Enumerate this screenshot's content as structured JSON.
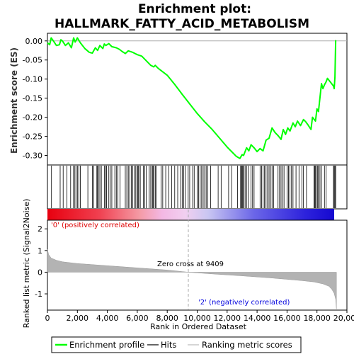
{
  "chart_data": {
    "type": "line",
    "title_line1": "Enrichment plot:",
    "title_line2": "HALLMARK_FATTY_ACID_METABOLISM",
    "es_ylabel": "Enrichment score (ES)",
    "metric_ylabel": "Ranked list metric (Signal2Noise)",
    "xlabel": "Rank in Ordered Dataset",
    "xlim": [
      0,
      20000
    ],
    "es_ylim": [
      -0.325,
      0.02
    ],
    "metric_ylim": [
      -1.75,
      2.4
    ],
    "x_ticks": [
      0,
      2000,
      4000,
      6000,
      8000,
      10000,
      12000,
      14000,
      16000,
      18000,
      20000
    ],
    "x_tick_labels": [
      "0",
      "2,000",
      "4,000",
      "6,000",
      "8,000",
      "10,000",
      "12,000",
      "14,000",
      "16,000",
      "18,000",
      "20,000"
    ],
    "es_ticks": [
      0.0,
      -0.05,
      -0.1,
      -0.15,
      -0.2,
      -0.25,
      -0.3
    ],
    "es_tick_labels": [
      "0.00",
      "-0.05",
      "-0.10",
      "-0.15",
      "-0.20",
      "-0.25",
      "-0.30"
    ],
    "metric_ticks": [
      2,
      1,
      0,
      -1
    ],
    "metric_tick_labels": [
      "2",
      "1",
      "0",
      "-1"
    ],
    "n_genes": 19300,
    "zero_cross_rank": 9409,
    "zero_cross_label": "Zero cross at 9409",
    "pos_label": "'0' (positively correlated)",
    "neg_label": "'2' (negatively correlated)",
    "es_profile": {
      "x": [
        0,
        150,
        250,
        400,
        600,
        800,
        900,
        1000,
        1200,
        1400,
        1600,
        1750,
        1850,
        2000,
        2200,
        2500,
        2800,
        3000,
        3200,
        3350,
        3500,
        3700,
        3800,
        3900,
        4100,
        4300,
        4600,
        4800,
        5000,
        5200,
        5400,
        5700,
        6000,
        6300,
        6600,
        6900,
        7100,
        7200,
        7400,
        8000,
        8500,
        9000,
        9500,
        10000,
        10500,
        11000,
        11500,
        12000,
        12300,
        12600,
        12850,
        13000,
        13100,
        13300,
        13450,
        13600,
        13800,
        14000,
        14200,
        14400,
        14600,
        14800,
        15000,
        15200,
        15400,
        15600,
        15750,
        15900,
        16050,
        16200,
        16400,
        16550,
        16700,
        16900,
        17100,
        17250,
        17400,
        17600,
        17700,
        17900,
        18000,
        18100,
        18300,
        18400,
        18500,
        18600,
        18700,
        18900,
        19100,
        19150,
        19200,
        19250
      ],
      "y": [
        -0.005,
        -0.01,
        0.008,
        0.0,
        -0.012,
        -0.01,
        0.003,
        0.0,
        -0.012,
        -0.005,
        -0.018,
        0.008,
        -0.003,
        0.008,
        -0.005,
        -0.02,
        -0.03,
        -0.032,
        -0.018,
        -0.025,
        -0.012,
        -0.02,
        -0.008,
        -0.012,
        -0.007,
        -0.015,
        -0.018,
        -0.022,
        -0.028,
        -0.033,
        -0.026,
        -0.03,
        -0.036,
        -0.04,
        -0.052,
        -0.064,
        -0.068,
        -0.064,
        -0.072,
        -0.09,
        -0.114,
        -0.14,
        -0.165,
        -0.19,
        -0.212,
        -0.232,
        -0.255,
        -0.278,
        -0.29,
        -0.302,
        -0.308,
        -0.298,
        -0.3,
        -0.28,
        -0.288,
        -0.272,
        -0.28,
        -0.29,
        -0.282,
        -0.288,
        -0.26,
        -0.255,
        -0.228,
        -0.24,
        -0.248,
        -0.258,
        -0.232,
        -0.245,
        -0.228,
        -0.236,
        -0.215,
        -0.225,
        -0.21,
        -0.222,
        -0.206,
        -0.212,
        -0.22,
        -0.232,
        -0.2,
        -0.21,
        -0.178,
        -0.185,
        -0.112,
        -0.125,
        -0.115,
        -0.108,
        -0.098,
        -0.108,
        -0.118,
        -0.125,
        -0.095,
        0.002
      ]
    },
    "hits": [
      270,
      850,
      1050,
      1300,
      1550,
      1750,
      1800,
      1900,
      2000,
      2100,
      2200,
      2700,
      3000,
      3100,
      3300,
      3350,
      3400,
      3500,
      3600,
      3800,
      3900,
      3950,
      4100,
      4200,
      4300,
      4500,
      4600,
      4700,
      4850,
      5200,
      5300,
      5400,
      5500,
      5600,
      5700,
      5800,
      5900,
      6000,
      6050,
      6100,
      6200,
      6400,
      6500,
      6600,
      6800,
      6900,
      7000,
      7050,
      7100,
      7200,
      7250,
      7600,
      7700,
      7900,
      8100,
      8300,
      8500,
      8700,
      8900,
      9000,
      9100,
      9200,
      9400,
      9500,
      9700,
      9800,
      10000,
      10100,
      10200,
      10300,
      10400,
      10500,
      10600,
      10700,
      10900,
      11400,
      11600,
      12100,
      12300,
      12700,
      12900,
      12950,
      13000,
      13050,
      13100,
      13200,
      13300,
      13400,
      13600,
      13700,
      13800,
      14200,
      14300,
      14400,
      14500,
      14600,
      14700,
      14800,
      14900,
      15000,
      15100,
      15400,
      15500,
      15600,
      15700,
      15800,
      16000,
      16100,
      16200,
      16300,
      16400,
      16600,
      16800,
      17000,
      17100,
      17300,
      17800,
      17850,
      17900,
      18000,
      18050,
      18100,
      18200,
      18300,
      18500,
      18600,
      19100,
      19150,
      19200,
      19250
    ],
    "metric_knots": {
      "x": [
        0,
        80,
        250,
        600,
        1000,
        2000,
        4000,
        6000,
        8000,
        9409,
        11000,
        13000,
        15000,
        16000,
        17000,
        17800,
        18400,
        18800,
        19000,
        19150,
        19250,
        19300
      ],
      "y": [
        1.05,
        0.82,
        0.65,
        0.55,
        0.48,
        0.4,
        0.3,
        0.2,
        0.1,
        0.0,
        -0.08,
        -0.17,
        -0.27,
        -0.33,
        -0.39,
        -0.45,
        -0.54,
        -0.65,
        -0.8,
        -0.98,
        -1.25,
        -1.7
      ]
    },
    "legend": [
      {
        "label": "Enrichment profile",
        "color": "#00ff00"
      },
      {
        "label": "Hits",
        "color": "#000000"
      },
      {
        "label": "Ranking metric scores",
        "color": "#bbbbbb"
      }
    ],
    "colors": {
      "es_line": "#00ff00",
      "hit": "#000000",
      "metric_fill": "#b3b3b3",
      "pos_text": "#dd0000",
      "neg_text": "#0000dd",
      "zero_line": "#aaaaaa"
    }
  }
}
